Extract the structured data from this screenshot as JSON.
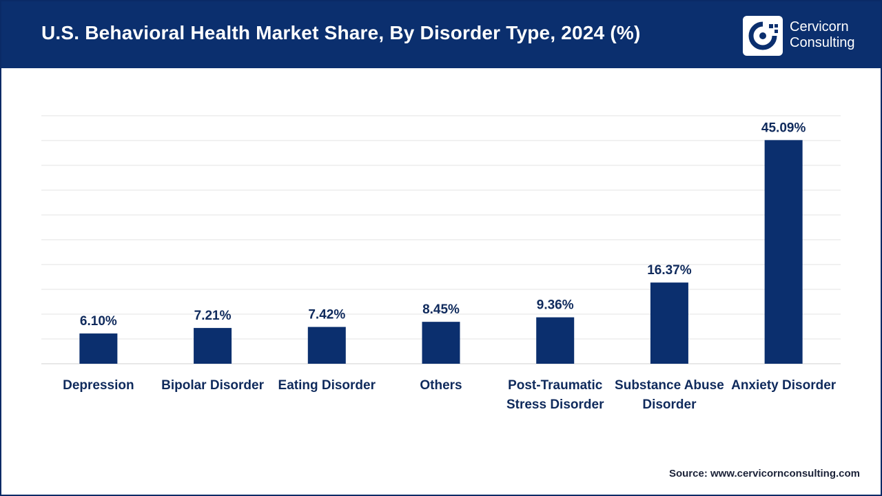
{
  "header": {
    "title": "U.S. Behavioral Health Market Share, By Disorder Type, 2024 (%)",
    "logo_line1": "Cervicorn",
    "logo_line2": "Consulting"
  },
  "source": {
    "label": "Source:",
    "url": "www.cervicornconsulting.com"
  },
  "colors": {
    "header_bg": "#0b2f6e",
    "bar": "#0b2f6e",
    "grid": "#e3e3e3",
    "label": "#0f2a5c"
  },
  "chart_data": {
    "type": "bar",
    "title": "U.S. Behavioral Health Market Share, By Disorder Type, 2024 (%)",
    "categories": [
      [
        "Depression"
      ],
      [
        "Bipolar Disorder"
      ],
      [
        "Eating Disorder"
      ],
      [
        "Others"
      ],
      [
        "Post-Traumatic",
        "Stress Disorder"
      ],
      [
        "Substance Abuse",
        "Disorder"
      ],
      [
        "Anxiety Disorder"
      ]
    ],
    "values": [
      6.1,
      7.21,
      7.42,
      8.45,
      9.36,
      16.37,
      45.09
    ],
    "value_labels": [
      "6.10%",
      "7.21%",
      "7.42%",
      "8.45%",
      "9.36%",
      "16.37%",
      "45.09%"
    ],
    "xlabel": "",
    "ylabel": "",
    "ylim": [
      0,
      50
    ],
    "grid": true,
    "gridlines": 10
  }
}
